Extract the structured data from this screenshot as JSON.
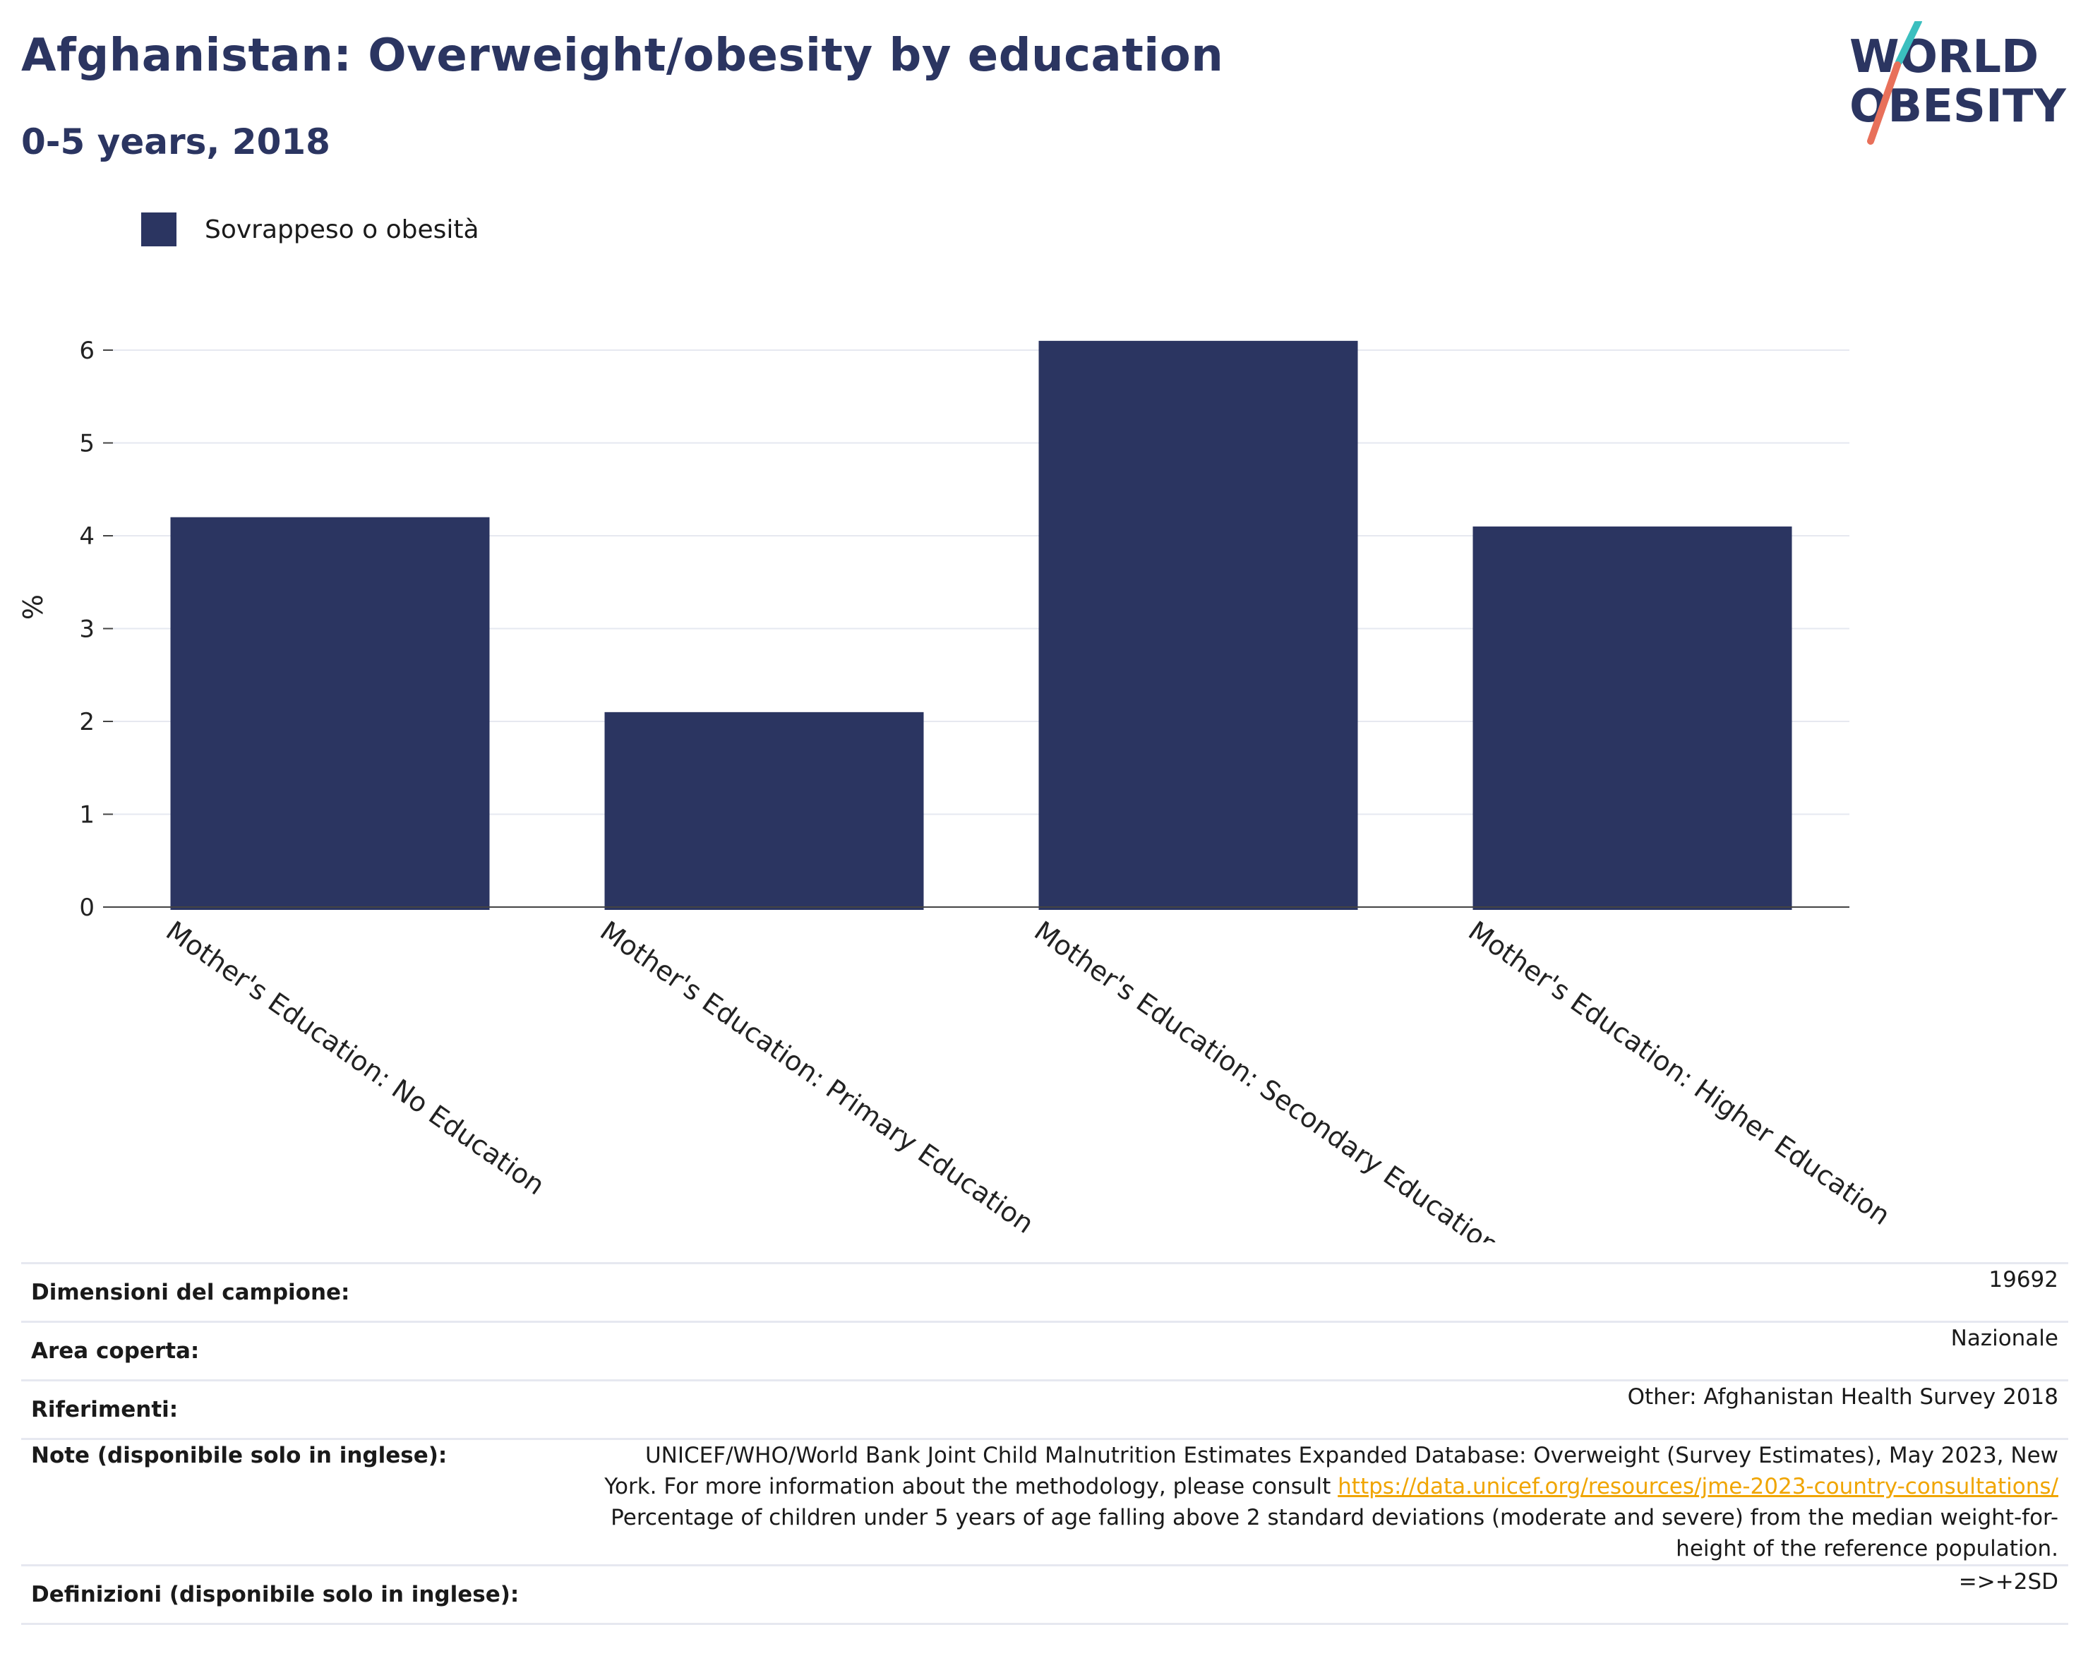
{
  "header": {
    "title": "Afghanistan: Overweight/obesity by education",
    "subtitle": "0-5 years, 2018"
  },
  "logo": {
    "line1": "WORLD",
    "line2": "OBESITY",
    "colors": {
      "text": "#2b3561",
      "slash_top": "#3bbfbf",
      "slash_bottom": "#e8705a"
    }
  },
  "legend": {
    "label": "Sovrappeso o obesità",
    "color": "#2b3561"
  },
  "chart_data": {
    "type": "bar",
    "categories": [
      "Mother's Education: No Education",
      "Mother's Education: Primary Education",
      "Mother's Education: Secondary Education",
      "Mother's Education: Higher Education"
    ],
    "series": [
      {
        "name": "Sovrappeso o obesità",
        "values": [
          4.2,
          2.1,
          6.1,
          4.1
        ],
        "color": "#2b3561"
      }
    ],
    "ylabel": "%",
    "ylim": [
      0,
      6.4
    ],
    "yticks": [
      0,
      1,
      2,
      3,
      4,
      5,
      6
    ],
    "grid": true,
    "legend_position": "top-left"
  },
  "info_table": [
    {
      "label": "Dimensioni del campione:",
      "value": "19692"
    },
    {
      "label": "Area coperta:",
      "value": "Nazionale"
    },
    {
      "label": "Riferimenti:",
      "value": "Other: Afghanistan Health Survey 2018"
    },
    {
      "label": "Note (disponibile solo in inglese):",
      "value_before": "UNICEF/WHO/World Bank Joint Child Malnutrition Estimates Expanded Database: Overweight (Survey Estimates), May 2023, New York. For more information about the methodology, please consult ",
      "link": "https://data.unicef.org/resources/jme-2023-country-consultations/",
      "value_after": " Percentage of children under 5 years of age falling above 2 standard deviations (moderate and severe) from the median weight-for-height of the reference population."
    },
    {
      "label": "Definizioni (disponibile solo in inglese):",
      "value": "=>+2SD"
    }
  ]
}
